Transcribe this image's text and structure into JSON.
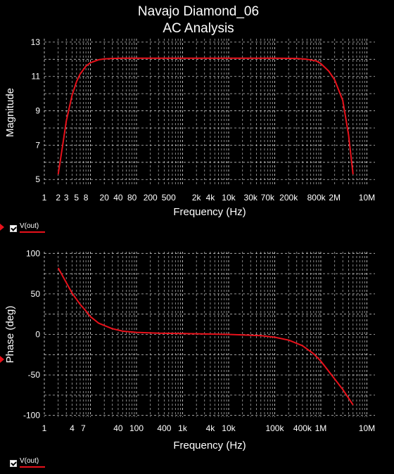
{
  "window": {
    "title_line1": "Navajo Diamond_06",
    "title_line2": "AC Analysis"
  },
  "legend": [
    {
      "label": "V(out)",
      "color": "#e8111b"
    },
    {
      "label": "V(out)",
      "color": "#e8111b"
    }
  ],
  "colors": {
    "background": "#000000",
    "grid": "#ffffff",
    "trace": "#e8111b",
    "text": "#ffffff"
  },
  "chart_data": [
    {
      "type": "line",
      "title": "Navajo Diamond_06 AC Analysis",
      "xlabel": "Frequency (Hz)",
      "ylabel": "Magnitude",
      "xscale": "log",
      "xlim": [
        1,
        15000000
      ],
      "ylim": [
        4.6,
        13.2
      ],
      "grid": true,
      "xticks": [
        1,
        2,
        3,
        5,
        8,
        20,
        40,
        80,
        200,
        500,
        2000,
        4000,
        10000,
        30000,
        70000,
        200000,
        800000,
        2000000,
        10000000
      ],
      "xtick_labels": [
        "1",
        "2",
        "3",
        "5",
        "8",
        "20",
        "40",
        "80",
        "200",
        "500",
        "2k",
        "4k",
        "10k",
        "30k",
        "70k",
        "200k",
        "800k",
        "2M",
        "10M"
      ],
      "yticks": [
        5,
        7,
        9,
        11,
        13
      ],
      "series": [
        {
          "name": "V(out)",
          "x": [
            2,
            2.5,
            3,
            4,
            5,
            6,
            8,
            10,
            15,
            20,
            30,
            50,
            100,
            1000,
            10000,
            100000,
            300000,
            500000,
            800000,
            1000000,
            1500000,
            2000000,
            3000000,
            4000000,
            5000000
          ],
          "y": [
            5.3,
            7.0,
            8.4,
            9.9,
            10.7,
            11.15,
            11.6,
            11.8,
            11.97,
            12.02,
            12.05,
            12.06,
            12.06,
            12.06,
            12.06,
            12.06,
            12.05,
            12.0,
            11.9,
            11.75,
            11.3,
            10.8,
            9.6,
            7.6,
            5.3
          ]
        }
      ]
    },
    {
      "type": "line",
      "xlabel": "Frequency (Hz)",
      "ylabel": "Phase (deg)",
      "xscale": "log",
      "xlim": [
        1,
        15000000
      ],
      "ylim": [
        -102,
        102
      ],
      "grid": true,
      "xticks": [
        1,
        4,
        7,
        40,
        100,
        400,
        1000,
        4000,
        10000,
        100000,
        400000,
        1000000,
        10000000
      ],
      "xtick_labels": [
        "1",
        "4",
        "7",
        "40",
        "100",
        "400",
        "1k",
        "4k",
        "10k",
        "100k",
        "400k",
        "1M",
        "10M"
      ],
      "yticks": [
        100,
        50,
        0,
        -50,
        -100
      ],
      "series": [
        {
          "name": "V(out)",
          "x": [
            2,
            3,
            4,
            6,
            8,
            10,
            15,
            20,
            30,
            50,
            100,
            300,
            1000,
            10000,
            50000,
            100000,
            200000,
            400000,
            700000,
            1000000,
            2000000,
            3000000,
            5000000
          ],
          "y": [
            82,
            64,
            51,
            37,
            29,
            22,
            14,
            11,
            7,
            4,
            2.5,
            1.5,
            1,
            0,
            -1.5,
            -3.5,
            -7,
            -14,
            -24,
            -33,
            -55,
            -68,
            -87
          ]
        }
      ]
    }
  ]
}
